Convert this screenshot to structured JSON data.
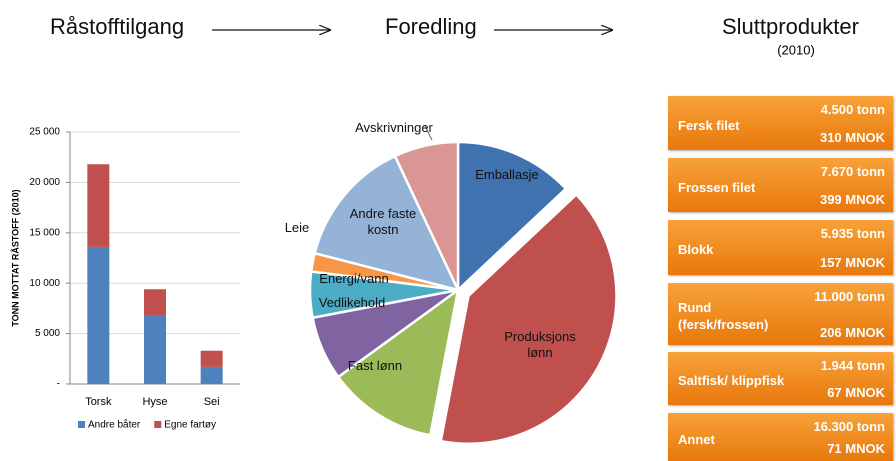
{
  "headers": {
    "raw": "Råstofftilgang",
    "processing": "Foredling",
    "products": "Sluttprodukter",
    "products_note": "(2010)"
  },
  "chart_data": [
    {
      "type": "bar",
      "stacked": true,
      "ylabel": "TONN MOTTAT RÅSTOFF (2010)",
      "categories": [
        "Torsk",
        "Hyse",
        "Sei"
      ],
      "series": [
        {
          "name": "Andre båter",
          "color": "#4f81bd",
          "values": [
            13600,
            6800,
            1700
          ]
        },
        {
          "name": "Egne fartøy",
          "color": "#c0504d",
          "values": [
            8200,
            2600,
            1600
          ]
        }
      ],
      "ylim": [
        0,
        25000
      ],
      "yticks": [
        {
          "value": 0,
          "label": "-"
        },
        {
          "value": 5000,
          "label": "5 000"
        },
        {
          "value": 10000,
          "label": "10 000"
        },
        {
          "value": 15000,
          "label": "15 000"
        },
        {
          "value": 20000,
          "label": "20 000"
        },
        {
          "value": 25000,
          "label": "25 000"
        }
      ],
      "grid": true,
      "legend": "bottom"
    },
    {
      "type": "pie",
      "categories": [
        "Emballasje",
        "Produksjons lønn",
        "Fast lønn",
        "Vedlikehold",
        "Energi/vann",
        "Leie",
        "Andre faste kostn",
        "Avskrivninger"
      ],
      "values": [
        13,
        40,
        12,
        7,
        5,
        2,
        14,
        7
      ],
      "colors": [
        "#3f72ae",
        "#c0504d",
        "#9bbb59",
        "#8064a2",
        "#4bacc6",
        "#f79646",
        "#95b3d7",
        "#d99694"
      ],
      "exploded": "Produksjons lønn"
    }
  ],
  "products": [
    {
      "name": "Fersk filet",
      "volume": "4.500 tonn",
      "value": "310 MNOK"
    },
    {
      "name": "Frossen filet",
      "volume": "7.670 tonn",
      "value": "399 MNOK"
    },
    {
      "name": "Blokk",
      "volume": "5.935 tonn",
      "value": "157 MNOK"
    },
    {
      "name": "Rund (fersk/frossen)",
      "volume": "11.000 tonn",
      "value": "206 MNOK"
    },
    {
      "name": "Saltfisk/ klippfisk",
      "volume": "1.944 tonn",
      "value": "67 MNOK"
    },
    {
      "name": "Annet",
      "volume": "16.300 tonn",
      "value": "71 MNOK"
    }
  ]
}
